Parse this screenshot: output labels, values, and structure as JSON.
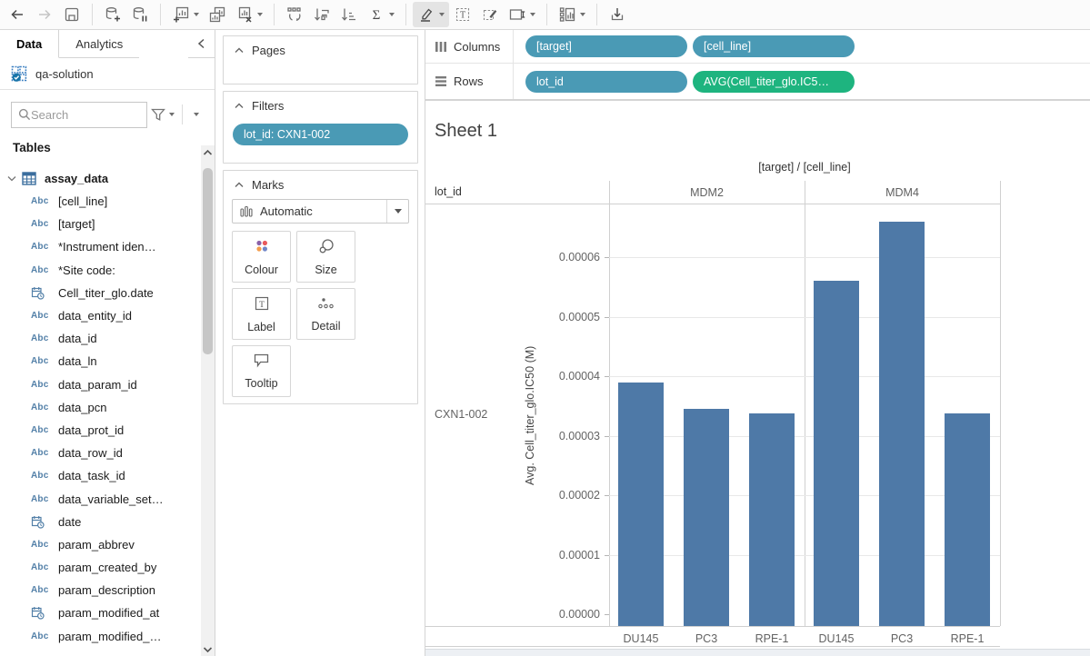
{
  "toolbar": {
    "items": [
      {
        "icon": "undo"
      },
      {
        "icon": "redo",
        "disabled": true
      },
      {
        "icon": "save"
      },
      {
        "sep": true
      },
      {
        "icon": "new-data-source"
      },
      {
        "icon": "pause-auto-updates"
      },
      {
        "sep": true
      },
      {
        "icon": "new-worksheet",
        "caret": true
      },
      {
        "icon": "duplicate-sheet"
      },
      {
        "icon": "clear-sheet",
        "caret": true
      },
      {
        "sep": true
      },
      {
        "icon": "swap-rows-columns"
      },
      {
        "icon": "sort-ascending"
      },
      {
        "icon": "sort-descending"
      },
      {
        "icon": "totals",
        "caret": true
      },
      {
        "sep": true
      },
      {
        "icon": "highlight",
        "caret": true,
        "active": true
      },
      {
        "icon": "mark-labels"
      },
      {
        "icon": "edit-annotation"
      },
      {
        "icon": "fit",
        "caret": true
      },
      {
        "sep": true
      },
      {
        "icon": "show-me",
        "caret": true
      },
      {
        "sep": true
      },
      {
        "icon": "download"
      }
    ]
  },
  "sidebar": {
    "tabs": {
      "data": "Data",
      "analytics": "Analytics"
    },
    "datasource": "qa-solution",
    "search_placeholder": "Search",
    "tables_header": "Tables",
    "table_name": "assay_data",
    "fields": [
      {
        "icon": "abc",
        "label": "[cell_line]"
      },
      {
        "icon": "abc",
        "label": "[target]"
      },
      {
        "icon": "abc",
        "label": "*Instrument iden…"
      },
      {
        "icon": "abc",
        "label": "*Site code:"
      },
      {
        "icon": "datetime",
        "label": "Cell_titer_glo.date"
      },
      {
        "icon": "abc",
        "label": "data_entity_id"
      },
      {
        "icon": "abc",
        "label": "data_id"
      },
      {
        "icon": "abc",
        "label": "data_ln"
      },
      {
        "icon": "abc",
        "label": "data_param_id"
      },
      {
        "icon": "abc",
        "label": "data_pcn"
      },
      {
        "icon": "abc",
        "label": "data_prot_id"
      },
      {
        "icon": "abc",
        "label": "data_row_id"
      },
      {
        "icon": "abc",
        "label": "data_task_id"
      },
      {
        "icon": "abc",
        "label": "data_variable_set…"
      },
      {
        "icon": "datetime",
        "label": "date"
      },
      {
        "icon": "abc",
        "label": "param_abbrev"
      },
      {
        "icon": "abc",
        "label": "param_created_by"
      },
      {
        "icon": "abc",
        "label": "param_description"
      },
      {
        "icon": "datetime",
        "label": "param_modified_at"
      },
      {
        "icon": "abc",
        "label": "param_modified_…"
      }
    ]
  },
  "cards": {
    "pages": {
      "title": "Pages"
    },
    "filters": {
      "title": "Filters",
      "pills": [
        "lot_id: CXN1-002"
      ]
    },
    "marks": {
      "title": "Marks",
      "mark_type": "Automatic",
      "buttons": [
        {
          "icon": "colour",
          "label": "Colour"
        },
        {
          "icon": "size",
          "label": "Size"
        },
        {
          "icon": "label",
          "label": "Label"
        },
        {
          "icon": "detail",
          "label": "Detail"
        },
        {
          "icon": "tooltip",
          "label": "Tooltip"
        }
      ]
    }
  },
  "shelves": {
    "columns": {
      "label": "Columns",
      "pills": [
        {
          "text": "[target]",
          "type": "dim"
        },
        {
          "text": "[cell_line]",
          "type": "dim"
        }
      ]
    },
    "rows": {
      "label": "Rows",
      "pills": [
        {
          "text": "lot_id",
          "type": "dim"
        },
        {
          "text": "AVG(Cell_titer_glo.IC5…",
          "type": "measure"
        }
      ]
    }
  },
  "sheet": {
    "title": "Sheet 1"
  },
  "chart_data": {
    "type": "bar",
    "title": "[target] / [cell_line]",
    "row_field_label": "lot_id",
    "row_value": "CXN1-002",
    "panels": [
      "MDM2",
      "MDM4"
    ],
    "categories": [
      "DU145",
      "PC3",
      "RPE-1"
    ],
    "series": [
      {
        "name": "MDM2",
        "values": [
          3.89e-05,
          3.45e-05,
          3.38e-05
        ]
      },
      {
        "name": "MDM4",
        "values": [
          5.6e-05,
          6.59e-05,
          3.38e-05
        ]
      }
    ],
    "ylabel": "Avg. Cell_titer_glo.IC50 (M)",
    "yticks": [
      "0.00000",
      "0.00001",
      "0.00002",
      "0.00003",
      "0.00004",
      "0.00005",
      "0.00006"
    ],
    "ylim": [
      0,
      6.88e-05
    ],
    "grid": true,
    "legend": "none"
  },
  "colors": {
    "bar": "#4e79a7",
    "pill_dimension": "#4a9ab5",
    "pill_measure": "#1eb47f",
    "colour_icon_dots": [
      "#8a61a9",
      "#e8595c",
      "#f49e4c",
      "#7086c8"
    ]
  }
}
